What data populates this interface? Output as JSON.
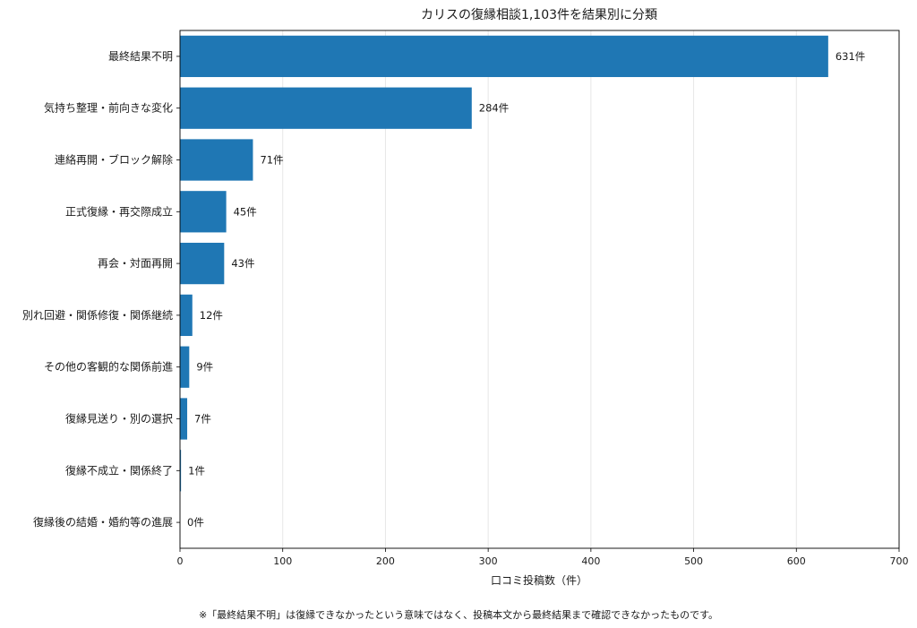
{
  "chart_data": {
    "type": "bar",
    "orientation": "horizontal",
    "title": "カリスの復縁相談1,103件を結果別に分類",
    "xlabel": "口コミ投稿数（件）",
    "ylabel": "",
    "xlim": [
      0,
      700
    ],
    "xticks": [
      0,
      100,
      200,
      300,
      400,
      500,
      600,
      700
    ],
    "grid": "vertical",
    "bar_color": "#1f77b4",
    "categories": [
      "最終結果不明",
      "気持ち整理・前向きな変化",
      "連絡再開・ブロック解除",
      "正式復縁・再交際成立",
      "再会・対面再開",
      "別れ回避・関係修復・関係継続",
      "その他の客観的な関係前進",
      "復縁見送り・別の選択",
      "復縁不成立・関係終了",
      "復縁後の結婚・婚約等の進展"
    ],
    "values": [
      631,
      284,
      71,
      45,
      43,
      12,
      9,
      7,
      1,
      0
    ],
    "value_labels": [
      "631件",
      "284件",
      "71件",
      "45件",
      "43件",
      "12件",
      "9件",
      "7件",
      "1件",
      "0件"
    ]
  },
  "footnote": "※「最終結果不明」は復縁できなかったという意味ではなく、投稿本文から最終結果まで確認できなかったものです。"
}
